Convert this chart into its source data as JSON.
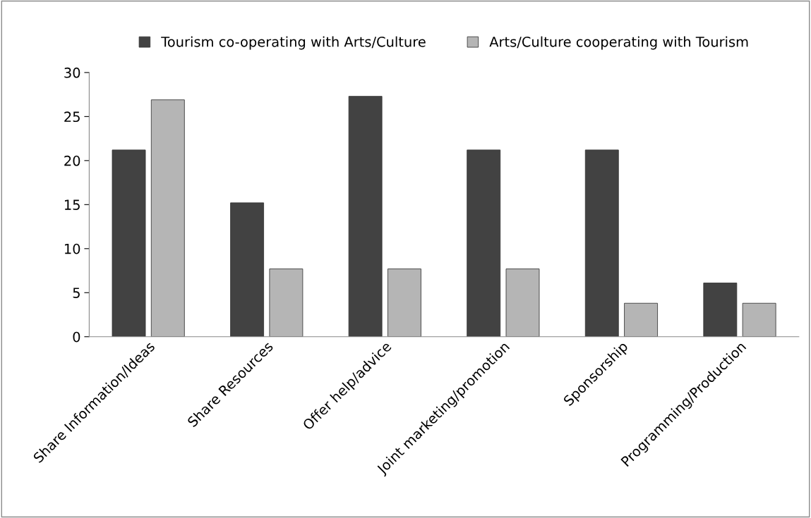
{
  "chart_data": {
    "type": "bar",
    "categories": [
      "Share Information/Ideas",
      "Share Resources",
      "Offer help/advice",
      "Joint marketing/promotion",
      "Sponsorship",
      "Programming/Production"
    ],
    "series": [
      {
        "name": "Tourism co-operating with Arts/Culture",
        "color": "#424242",
        "values": [
          21.2,
          15.2,
          27.3,
          21.2,
          21.2,
          6.1
        ]
      },
      {
        "name": "Arts/Culture cooperating with Tourism",
        "color": "#b5b5b5",
        "values": [
          26.9,
          7.7,
          7.7,
          7.7,
          3.8,
          3.8
        ]
      }
    ],
    "ylim": [
      0,
      30
    ],
    "yticks": [
      0,
      5,
      10,
      15,
      20,
      25,
      30
    ],
    "grid": false,
    "legend": "top"
  }
}
